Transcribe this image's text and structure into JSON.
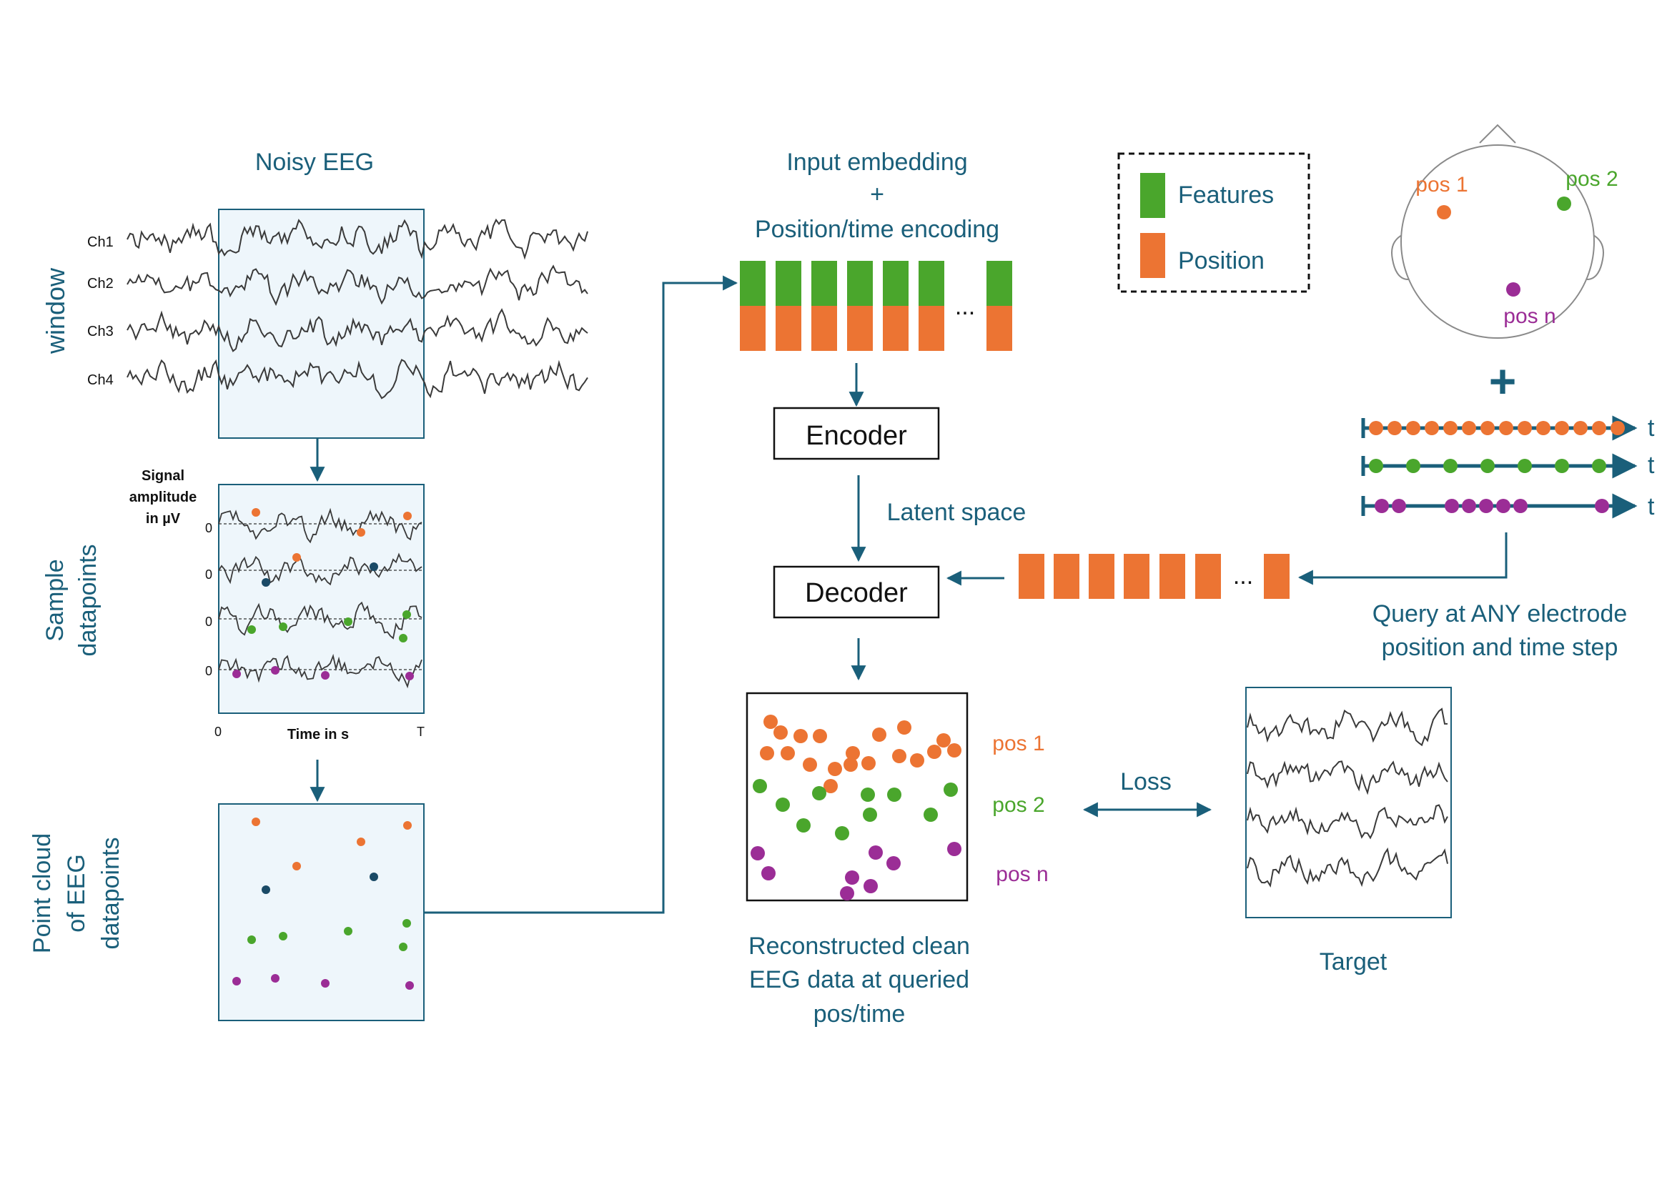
{
  "colors": {
    "teal": "#1a5f7a",
    "orange": "#ec7433",
    "green": "#4aa62c",
    "purple": "#9b2d96",
    "darkblue": "#1a4a66",
    "panel_fill": "#eef6fb"
  },
  "eeg": {
    "title": "Noisy EEG",
    "window_label": "window",
    "channels": [
      "Ch1",
      "Ch2",
      "Ch3",
      "Ch4"
    ]
  },
  "sample": {
    "side_label_1": "Sample",
    "side_label_2": "datapoints",
    "ylabel_1": "Signal",
    "ylabel_2": "amplitude",
    "ylabel_3": "in µV",
    "zero_ticks": [
      "0",
      "0",
      "0",
      "0"
    ],
    "x_start": "0",
    "x_end": "T",
    "xlabel": "Time in s"
  },
  "pointcloud": {
    "side_label_1": "Point cloud",
    "side_label_2": "of EEG",
    "side_label_3": "datapoints"
  },
  "embedding": {
    "line1": "Input embedding",
    "line2": "+",
    "line3": "Position/time encoding",
    "ellipsis": "..."
  },
  "legend": {
    "features": "Features",
    "position": "Position"
  },
  "model": {
    "encoder": "Encoder",
    "decoder": "Decoder",
    "latent": "Latent space",
    "query_ellipsis": "..."
  },
  "head": {
    "pos1": "pos 1",
    "pos2": "pos 2",
    "posn": "pos n",
    "plus": "+",
    "t": "t"
  },
  "query": {
    "line1": "Query at ANY electrode",
    "line2": "position and time step"
  },
  "output": {
    "pos1": "pos 1",
    "pos2": "pos 2",
    "posn": "pos n",
    "loss": "Loss",
    "caption1": "Reconstructed clean",
    "caption2": "EEG data at queried",
    "caption3": "pos/time",
    "target": "Target"
  }
}
